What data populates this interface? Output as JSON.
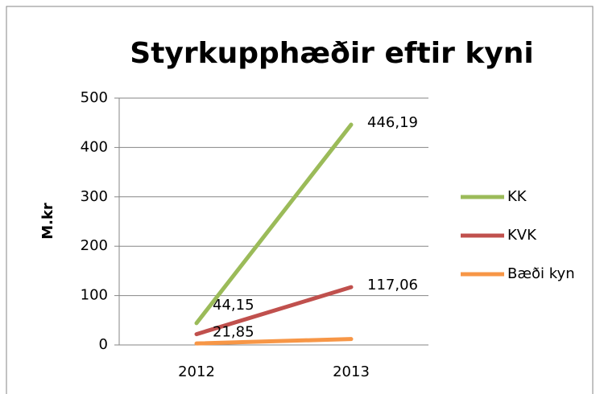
{
  "chart_data": {
    "type": "line",
    "title": "Styrkupphæðir eftir kyni",
    "y_label": "M.kr",
    "categories": [
      "2012",
      "2013"
    ],
    "series": [
      {
        "name": "KK",
        "color": "#9bbb59",
        "values": [
          44.15,
          446.19
        ],
        "value_labels": [
          "44,15",
          "446,19"
        ]
      },
      {
        "name": "KVK",
        "color": "#c0504d",
        "values": [
          21.85,
          117.06
        ],
        "value_labels": [
          "21,85",
          "117,06"
        ]
      },
      {
        "name": "Bæði kyn",
        "color": "#f79646",
        "values": [
          3,
          12
        ]
      }
    ],
    "ylim": [
      0,
      500
    ],
    "yticks": [
      0,
      100,
      200,
      300,
      400,
      500
    ],
    "grid": true,
    "legend": "right"
  }
}
